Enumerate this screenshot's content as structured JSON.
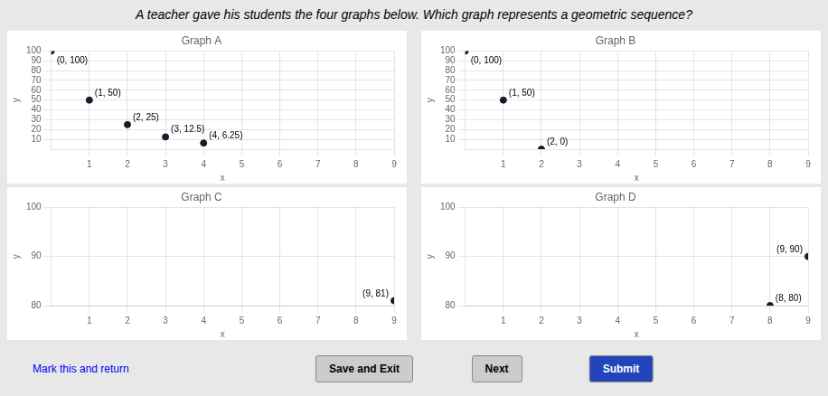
{
  "title": "A teacher gave his students the four graphs below. Which graph represents a geometric sequence?",
  "background": "#e8e8e8",
  "chart_data": [
    {
      "type": "scatter",
      "title": "Graph A",
      "x_label": "x",
      "y_label": "y",
      "x": [
        0,
        1,
        2,
        3,
        4
      ],
      "values": [
        100,
        50,
        25,
        12.5,
        6.25
      ],
      "color": "#1a1a2e",
      "xlim": [
        0,
        9
      ],
      "ylim": [
        0,
        100
      ],
      "xticks": [
        1,
        2,
        3,
        4,
        5,
        6,
        7,
        8,
        9
      ],
      "yticks": [
        10,
        20,
        30,
        40,
        50,
        60,
        70,
        80,
        90,
        100
      ],
      "grid": true,
      "annotations": [
        {
          "x": 0,
          "y": 100,
          "text": "(0, 100)"
        },
        {
          "x": 1,
          "y": 50,
          "text": "(1, 50)"
        },
        {
          "x": 2,
          "y": 25,
          "text": "(2, 25)"
        },
        {
          "x": 3,
          "y": 12.5,
          "text": "(3, 12.5)"
        },
        {
          "x": 4,
          "y": 6.25,
          "text": "(4, 6.25)"
        }
      ]
    },
    {
      "type": "scatter",
      "title": "Graph B",
      "x_label": "x",
      "y_label": "y",
      "x": [
        0,
        1,
        2
      ],
      "values": [
        100,
        50,
        0
      ],
      "color": "#1a1a2e",
      "xlim": [
        0,
        9
      ],
      "ylim": [
        0,
        100
      ],
      "xticks": [
        1,
        2,
        3,
        4,
        5,
        6,
        7,
        8,
        9
      ],
      "yticks": [
        10,
        20,
        30,
        40,
        50,
        60,
        70,
        80,
        90,
        100
      ],
      "grid": true,
      "annotations": [
        {
          "x": 0,
          "y": 100,
          "text": "(0, 100)"
        },
        {
          "x": 1,
          "y": 50,
          "text": "(1, 50)"
        },
        {
          "x": 2,
          "y": 0,
          "text": "(2, 0)"
        }
      ]
    },
    {
      "type": "scatter",
      "title": "Graph C",
      "x_label": "x",
      "y_label": "y",
      "x": [
        9
      ],
      "values": [
        81
      ],
      "color": "#1a1a2e",
      "xlim": [
        0,
        9
      ],
      "ylim": [
        80,
        100
      ],
      "xticks": [
        1,
        2,
        3,
        4,
        5,
        6,
        7,
        8,
        9
      ],
      "yticks": [
        80,
        90,
        100
      ],
      "grid": true,
      "annotations": [
        {
          "x": 9,
          "y": 81,
          "text": "(9, 81)"
        }
      ]
    },
    {
      "type": "scatter",
      "title": "Graph D",
      "x_label": "x",
      "y_label": "y",
      "x": [
        8,
        9
      ],
      "values": [
        80,
        90
      ],
      "color": "#1a1a2e",
      "xlim": [
        0,
        9
      ],
      "ylim": [
        80,
        100
      ],
      "xticks": [
        1,
        2,
        3,
        4,
        5,
        6,
        7,
        8,
        9
      ],
      "yticks": [
        80,
        90,
        100
      ],
      "grid": true,
      "annotations": [
        {
          "x": 9,
          "y": 90,
          "text": "(9, 90)"
        },
        {
          "x": 8,
          "y": 80,
          "text": "(8, 80)"
        }
      ]
    }
  ],
  "link": "Mark this and return",
  "buttons": [
    {
      "text": "Save and Exit",
      "color": "#cccccc"
    },
    {
      "text": "Next",
      "color": "#cccccc"
    },
    {
      "text": "Submit",
      "color": "#2244bb"
    }
  ]
}
